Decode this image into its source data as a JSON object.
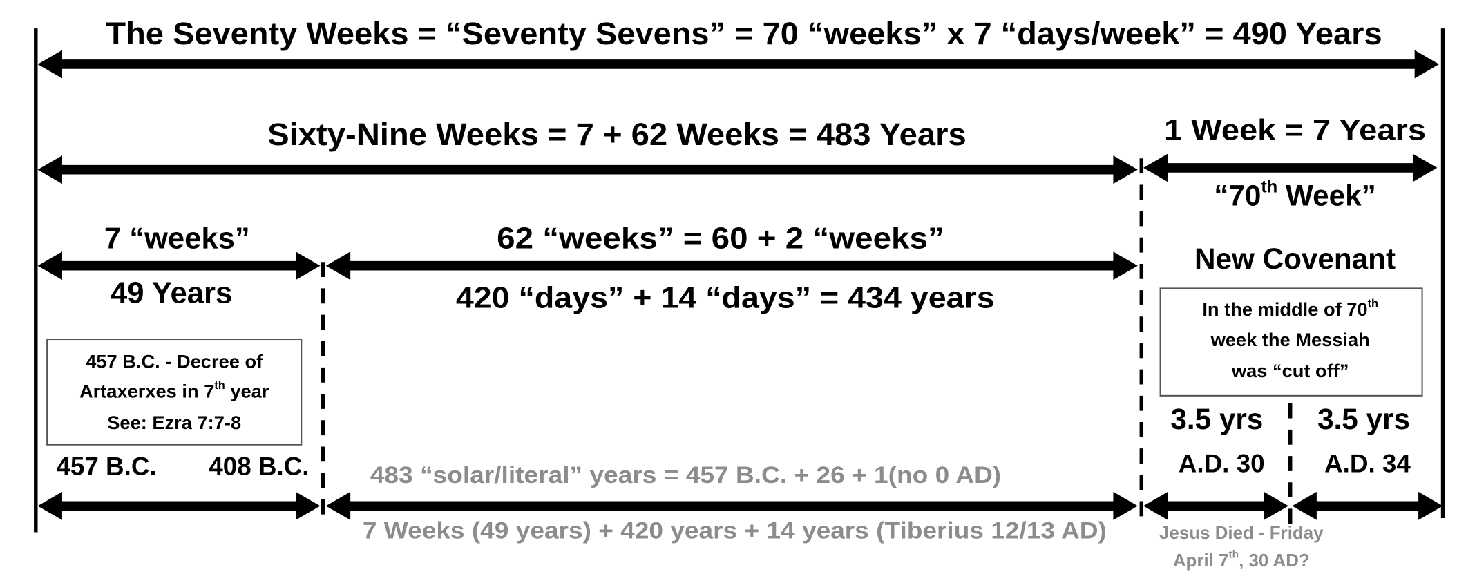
{
  "title": "The Seventy Weeks = “Seventy Sevens” = 70 “weeks” x 7 “days/week” = 490 Years",
  "spans": {
    "sixty_nine": "Sixty-Nine Weeks = 7 + 62 Weeks = 483 Years",
    "one_week": "1 Week = 7 Years",
    "seventieth_week": {
      "pre": "“70",
      "sup": "th",
      "post": " Week”"
    },
    "seven_weeks": "7 “weeks”",
    "forty_nine_years": "49 Years",
    "sixty_two_weeks": "62 “weeks” = 60 + 2 “weeks”",
    "days_total": "420 “days” + 14 “days” = 434 years",
    "new_covenant": "New Covenant"
  },
  "decree_box": {
    "line1": "457 B.C. - Decree of",
    "line2": {
      "pre": "Artaxerxes in 7",
      "sup": "th",
      "post": " year"
    },
    "line3": "See: Ezra 7:7-8"
  },
  "messiah_box": {
    "line1": {
      "pre": "In the middle of 70",
      "sup": "th"
    },
    "line2": "week the Messiah",
    "line3": "was “cut off”"
  },
  "half_weeks": [
    "3.5 yrs",
    "3.5 yrs"
  ],
  "dates": [
    "457 B.C.",
    "408 B.C.",
    "A.D. 30",
    "A.D. 34"
  ],
  "notes": {
    "solar": "483 “solar/literal” years = 457 B.C. + 26 + 1(no 0 AD)",
    "breakdown": "7 Weeks (49 years) + 420 years + 14 years (Tiberius 12/13 AD)",
    "jesus_died": "Jesus Died - Friday",
    "april": {
      "pre": "April 7",
      "sup": "th",
      "post": ", 30 AD?"
    }
  }
}
